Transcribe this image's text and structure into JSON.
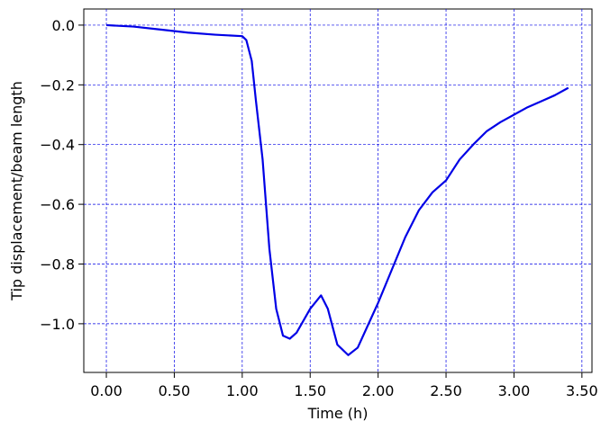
{
  "chart_data": {
    "type": "line",
    "xlabel": "Time (h)",
    "ylabel": "Tip displacement/beam length",
    "x": [
      0,
      0.2,
      0.4,
      0.6,
      0.8,
      1.0,
      1.03,
      1.07,
      1.1,
      1.15,
      1.2,
      1.25,
      1.3,
      1.35,
      1.4,
      1.5,
      1.58,
      1.63,
      1.7,
      1.78,
      1.85,
      1.95,
      2.0,
      2.1,
      2.2,
      2.3,
      2.4,
      2.5,
      2.6,
      2.7,
      2.8,
      2.9,
      3.0,
      3.1,
      3.2,
      3.3,
      3.4
    ],
    "series": [
      {
        "color": "#0000e6",
        "values": [
          0,
          -0.005,
          -0.015,
          -0.025,
          -0.032,
          -0.037,
          -0.05,
          -0.12,
          -0.25,
          -0.45,
          -0.75,
          -0.95,
          -1.04,
          -1.05,
          -1.03,
          -0.95,
          -0.905,
          -0.95,
          -1.07,
          -1.105,
          -1.08,
          -0.98,
          -0.93,
          -0.82,
          -0.71,
          -0.62,
          -0.56,
          -0.52,
          -0.45,
          -0.4,
          -0.355,
          -0.325,
          -0.3,
          -0.275,
          -0.255,
          -0.235,
          -0.21
        ]
      }
    ],
    "xlim": [
      -0.166,
      3.574
    ],
    "ylim": [
      -1.163,
      0.054
    ],
    "xticks": [
      {
        "value": 0,
        "label": "0.00"
      },
      {
        "value": 0.5,
        "label": "0.50"
      },
      {
        "value": 1,
        "label": "1.00"
      },
      {
        "value": 1.5,
        "label": "1.50"
      },
      {
        "value": 2,
        "label": "2.00"
      },
      {
        "value": 2.5,
        "label": "2.50"
      },
      {
        "value": 3,
        "label": "3.00"
      },
      {
        "value": 3.5,
        "label": "3.50"
      }
    ],
    "yticks": [
      {
        "value": 0,
        "label": "0.0"
      },
      {
        "value": -0.2,
        "label": "−0.2"
      },
      {
        "value": -0.4,
        "label": "−0.4"
      },
      {
        "value": -0.6,
        "label": "−0.6"
      },
      {
        "value": -0.8,
        "label": "−0.8"
      },
      {
        "value": -1,
        "label": "−1.0"
      }
    ],
    "grid": true
  }
}
